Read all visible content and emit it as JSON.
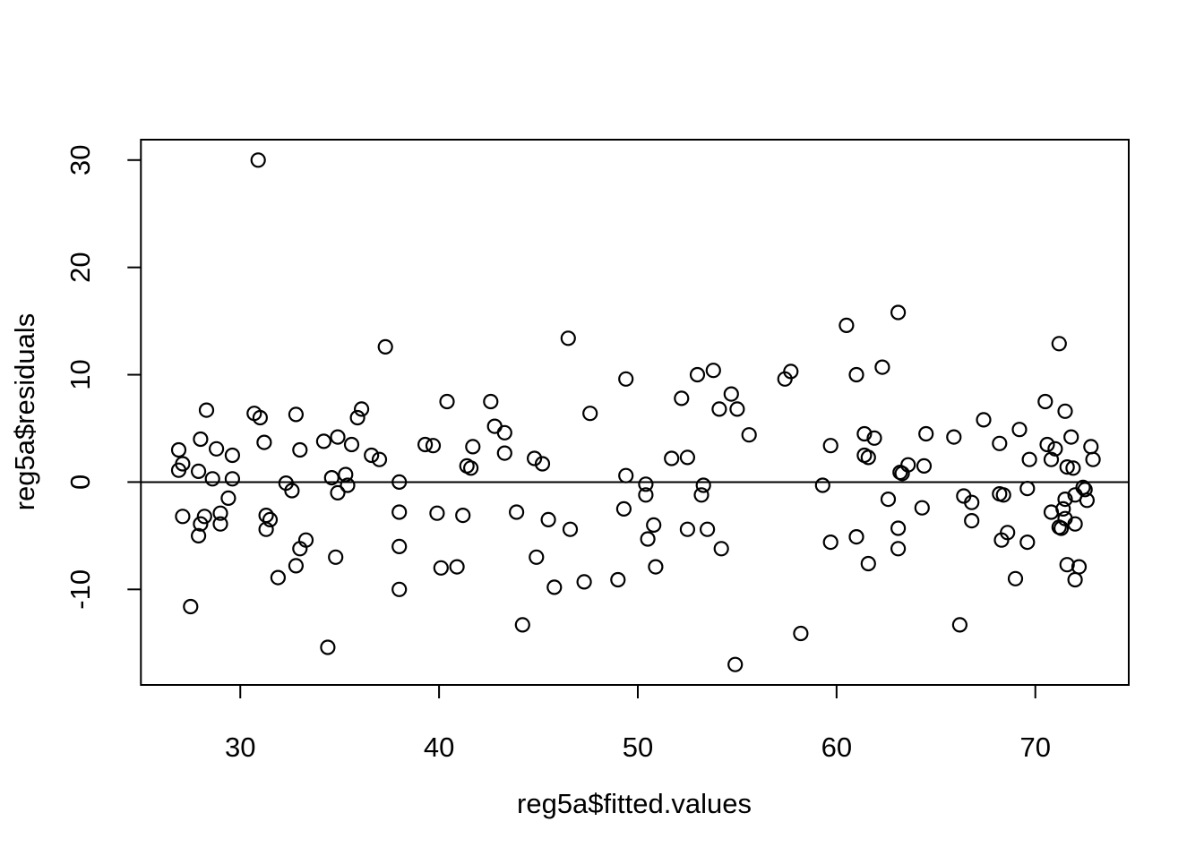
{
  "figure": {
    "background": "#ffffff",
    "foreground": "#000000"
  },
  "chart_data": {
    "type": "scatter",
    "title": "",
    "xlabel": "reg5a$fitted.values",
    "ylabel": "reg5a$residuals",
    "x_ticks": [
      30,
      40,
      50,
      60,
      70
    ],
    "y_ticks": [
      -10,
      0,
      10,
      20,
      30
    ],
    "xlim": [
      25.0,
      74.7
    ],
    "ylim": [
      -18.9,
      31.9
    ],
    "grid": false,
    "legend": false,
    "marker": "open-circle",
    "reference_line_y": 0,
    "points": [
      [
        30.9,
        30.0
      ],
      [
        37.3,
        12.6
      ],
      [
        46.5,
        13.4
      ],
      [
        60.5,
        14.6
      ],
      [
        63.1,
        15.8
      ],
      [
        71.2,
        12.9
      ],
      [
        49.4,
        9.6
      ],
      [
        53.0,
        10.0
      ],
      [
        53.8,
        10.4
      ],
      [
        57.7,
        10.3
      ],
      [
        57.4,
        9.6
      ],
      [
        61.0,
        10.0
      ],
      [
        62.3,
        10.7
      ],
      [
        28.3,
        6.7
      ],
      [
        30.7,
        6.4
      ],
      [
        31.0,
        6.0
      ],
      [
        32.8,
        6.3
      ],
      [
        36.1,
        6.8
      ],
      [
        35.9,
        6.0
      ],
      [
        40.4,
        7.5
      ],
      [
        42.6,
        7.5
      ],
      [
        47.6,
        6.4
      ],
      [
        52.2,
        7.8
      ],
      [
        54.7,
        8.2
      ],
      [
        54.1,
        6.8
      ],
      [
        55.0,
        6.8
      ],
      [
        67.4,
        5.8
      ],
      [
        70.5,
        7.5
      ],
      [
        71.5,
        6.6
      ],
      [
        42.8,
        5.2
      ],
      [
        26.9,
        3.0
      ],
      [
        28.0,
        4.0
      ],
      [
        28.8,
        3.1
      ],
      [
        29.6,
        2.5
      ],
      [
        31.2,
        3.7
      ],
      [
        33.0,
        3.0
      ],
      [
        34.2,
        3.8
      ],
      [
        34.9,
        4.2
      ],
      [
        35.6,
        3.5
      ],
      [
        36.6,
        2.5
      ],
      [
        37.0,
        2.1
      ],
      [
        39.3,
        3.5
      ],
      [
        39.7,
        3.4
      ],
      [
        41.7,
        3.3
      ],
      [
        43.3,
        4.6
      ],
      [
        43.3,
        2.7
      ],
      [
        44.8,
        2.2
      ],
      [
        45.2,
        1.7
      ],
      [
        41.4,
        1.5
      ],
      [
        41.6,
        1.3
      ],
      [
        51.7,
        2.2
      ],
      [
        52.5,
        2.3
      ],
      [
        55.6,
        4.4
      ],
      [
        59.7,
        3.4
      ],
      [
        61.4,
        4.5
      ],
      [
        61.9,
        4.1
      ],
      [
        61.4,
        2.5
      ],
      [
        61.6,
        2.3
      ],
      [
        64.5,
        4.5
      ],
      [
        65.9,
        4.2
      ],
      [
        69.2,
        4.9
      ],
      [
        68.2,
        3.6
      ],
      [
        71.8,
        4.2
      ],
      [
        70.6,
        3.5
      ],
      [
        71.0,
        3.1
      ],
      [
        72.8,
        3.3
      ],
      [
        69.7,
        2.1
      ],
      [
        70.8,
        2.1
      ],
      [
        72.9,
        2.1
      ],
      [
        27.1,
        1.7
      ],
      [
        26.9,
        1.1
      ],
      [
        27.9,
        1.0
      ],
      [
        28.6,
        0.3
      ],
      [
        29.6,
        0.3
      ],
      [
        34.6,
        0.4
      ],
      [
        35.3,
        0.7
      ],
      [
        32.3,
        -0.1
      ],
      [
        38.0,
        0.0
      ],
      [
        49.4,
        0.6
      ],
      [
        63.6,
        1.6
      ],
      [
        63.2,
        0.9
      ],
      [
        63.3,
        0.8
      ],
      [
        64.4,
        1.5
      ],
      [
        71.6,
        1.4
      ],
      [
        71.9,
        1.3
      ],
      [
        59.3,
        -0.3
      ],
      [
        50.4,
        -0.2
      ],
      [
        53.3,
        -0.3
      ],
      [
        35.4,
        -0.3
      ],
      [
        69.6,
        -0.6
      ],
      [
        72.4,
        -0.5
      ],
      [
        72.5,
        -0.7
      ],
      [
        29.4,
        -1.5
      ],
      [
        32.6,
        -0.8
      ],
      [
        34.9,
        -1.0
      ],
      [
        50.4,
        -1.2
      ],
      [
        53.2,
        -1.2
      ],
      [
        62.6,
        -1.6
      ],
      [
        66.4,
        -1.3
      ],
      [
        66.8,
        -1.9
      ],
      [
        68.2,
        -1.1
      ],
      [
        68.4,
        -1.2
      ],
      [
        72.0,
        -1.2
      ],
      [
        71.5,
        -1.6
      ],
      [
        72.6,
        -1.7
      ],
      [
        71.4,
        -2.5
      ],
      [
        64.3,
        -2.4
      ],
      [
        70.8,
        -2.8
      ],
      [
        49.3,
        -2.5
      ],
      [
        39.9,
        -2.9
      ],
      [
        41.2,
        -3.1
      ],
      [
        43.9,
        -2.8
      ],
      [
        29.0,
        -2.9
      ],
      [
        38.0,
        -2.8
      ],
      [
        27.1,
        -3.2
      ],
      [
        28.2,
        -3.2
      ],
      [
        31.3,
        -3.1
      ],
      [
        31.5,
        -3.5
      ],
      [
        45.5,
        -3.5
      ],
      [
        66.8,
        -3.6
      ],
      [
        71.5,
        -3.4
      ],
      [
        72.0,
        -3.9
      ],
      [
        28.0,
        -3.9
      ],
      [
        29.0,
        -3.9
      ],
      [
        27.9,
        -5.0
      ],
      [
        31.3,
        -4.4
      ],
      [
        33.3,
        -5.4
      ],
      [
        33.0,
        -6.2
      ],
      [
        46.6,
        -4.4
      ],
      [
        50.8,
        -4.0
      ],
      [
        52.5,
        -4.4
      ],
      [
        53.5,
        -4.4
      ],
      [
        50.5,
        -5.3
      ],
      [
        54.2,
        -6.2
      ],
      [
        59.7,
        -5.6
      ],
      [
        61.0,
        -5.1
      ],
      [
        63.1,
        -4.3
      ],
      [
        63.1,
        -6.2
      ],
      [
        68.3,
        -5.4
      ],
      [
        68.6,
        -4.7
      ],
      [
        69.6,
        -5.6
      ],
      [
        71.2,
        -4.2
      ],
      [
        71.3,
        -4.3
      ],
      [
        38.0,
        -6.0
      ],
      [
        34.8,
        -7.0
      ],
      [
        32.8,
        -7.8
      ],
      [
        31.9,
        -8.9
      ],
      [
        40.1,
        -8.0
      ],
      [
        40.9,
        -7.9
      ],
      [
        44.9,
        -7.0
      ],
      [
        45.8,
        -9.8
      ],
      [
        47.3,
        -9.3
      ],
      [
        49.0,
        -9.1
      ],
      [
        50.9,
        -7.9
      ],
      [
        61.6,
        -7.6
      ],
      [
        71.6,
        -7.7
      ],
      [
        72.2,
        -7.9
      ],
      [
        72.0,
        -9.1
      ],
      [
        69.0,
        -9.0
      ],
      [
        38.0,
        -10.0
      ],
      [
        27.5,
        -11.6
      ],
      [
        44.2,
        -13.3
      ],
      [
        34.4,
        -15.4
      ],
      [
        54.9,
        -17.0
      ],
      [
        58.2,
        -14.1
      ],
      [
        66.2,
        -13.3
      ]
    ]
  }
}
